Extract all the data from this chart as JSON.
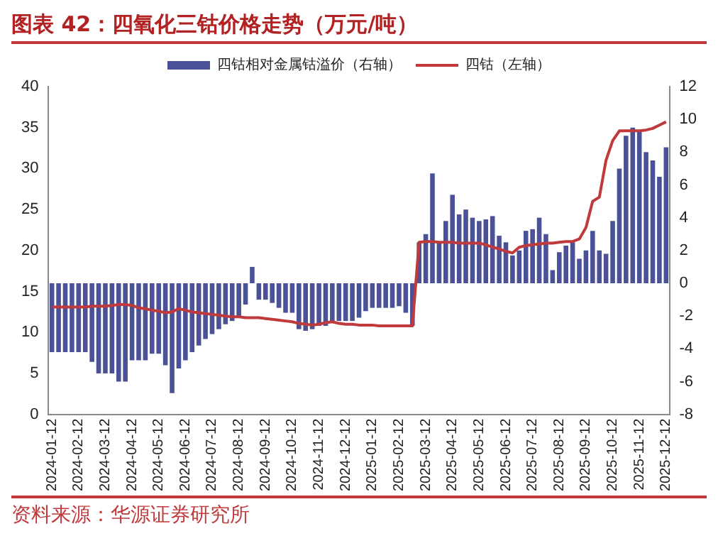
{
  "chart_data": {
    "type": "bar",
    "title": "图表 42：四氧化三钴价格走势（万元/吨）",
    "categories": [
      "2024-01-12",
      null,
      null,
      null,
      "2024-02-12",
      null,
      null,
      null,
      "2024-03-12",
      null,
      null,
      null,
      "2024-04-12",
      null,
      null,
      null,
      "2024-05-12",
      null,
      null,
      null,
      "2024-06-12",
      null,
      null,
      null,
      "2024-07-12",
      null,
      null,
      null,
      "2024-08-12",
      null,
      null,
      null,
      "2024-09-12",
      null,
      null,
      null,
      "2024-10-12",
      null,
      null,
      null,
      "2024-11-12",
      null,
      null,
      null,
      "2024-12-12",
      null,
      null,
      null,
      "2025-01-12",
      null,
      null,
      null,
      "2025-02-12",
      null,
      null,
      null,
      "2025-03-12",
      null,
      null,
      null,
      "2025-04-12",
      null,
      null,
      null,
      "2025-05-12",
      null,
      null,
      null,
      "2025-06-12",
      null,
      null,
      null,
      "2025-07-12",
      null,
      null,
      null,
      "2025-08-12",
      null,
      null,
      null,
      "2025-09-12",
      null,
      null,
      null,
      "2025-10-12",
      null,
      null,
      null,
      "2025-11-12",
      null,
      null,
      null,
      "2025-12-12"
    ],
    "series": [
      {
        "name": "四钴相对金属钴溢价（右轴）",
        "axis": "y2",
        "color": "#4b5196",
        "values": [
          -4.2,
          -4.2,
          -4.2,
          -4.2,
          -4.2,
          -4.2,
          -4.8,
          -5.5,
          -5.5,
          -5.5,
          -6.0,
          -6.0,
          -4.7,
          -4.7,
          -4.7,
          -4.3,
          -4.3,
          -5.0,
          -6.7,
          -5.2,
          -4.7,
          -4.2,
          -3.8,
          -3.4,
          -3.1,
          -2.8,
          -2.5,
          -2.3,
          -2.0,
          -1.3,
          1.0,
          -1.0,
          -1.0,
          -1.2,
          -1.5,
          -1.8,
          -1.8,
          -2.8,
          -2.9,
          -2.8,
          -2.6,
          -2.6,
          -2.3,
          -2.3,
          -2.3,
          -2.3,
          -2.1,
          -1.7,
          -1.5,
          -1.5,
          -1.5,
          -1.5,
          -1.4,
          -1.8,
          -2.6,
          2.5,
          3.0,
          6.7,
          2.5,
          3.8,
          5.4,
          4.2,
          4.5,
          4.0,
          3.8,
          3.9,
          4.1,
          2.9,
          2.5,
          1.7,
          2.0,
          3.2,
          3.3,
          4.0,
          3.0,
          0.8,
          1.9,
          2.3,
          2.5,
          1.5,
          2.0,
          3.2,
          2.0,
          1.8,
          3.8,
          7.0,
          9.0,
          9.5,
          9.3,
          8.0,
          7.5,
          6.5,
          8.3
        ]
      },
      {
        "name": "四钴（左轴）",
        "type": "line",
        "axis": "y",
        "color": "#c0393b",
        "values": [
          13.1,
          13.1,
          13.1,
          13.1,
          13.1,
          13.1,
          13.2,
          13.2,
          13.2,
          13.3,
          13.4,
          13.4,
          13.3,
          13.0,
          12.9,
          12.7,
          12.6,
          12.4,
          12.5,
          12.9,
          12.7,
          12.5,
          12.4,
          12.3,
          12.2,
          12.1,
          12.0,
          11.9,
          11.9,
          11.8,
          11.8,
          11.8,
          11.7,
          11.6,
          11.5,
          11.4,
          11.3,
          11.1,
          11.0,
          10.9,
          11.0,
          11.2,
          11.3,
          11.1,
          11.0,
          11.0,
          10.9,
          10.9,
          10.9,
          10.8,
          10.8,
          10.8,
          10.8,
          10.8,
          10.8,
          21.0,
          21.1,
          21.1,
          21.0,
          21.0,
          21.0,
          20.9,
          20.9,
          20.9,
          20.9,
          20.7,
          20.4,
          20.2,
          19.9,
          19.7,
          20.4,
          20.6,
          20.7,
          20.8,
          20.9,
          20.9,
          21.0,
          21.1,
          21.1,
          21.4,
          22.8,
          26.0,
          26.5,
          31.0,
          33.4,
          34.6,
          34.6,
          34.6,
          34.6,
          34.7,
          34.9,
          35.3,
          35.7
        ]
      }
    ],
    "ylim": [
      0,
      40
    ],
    "yticks": [
      0,
      5,
      10,
      15,
      20,
      25,
      30,
      35,
      40
    ],
    "y2lim": [
      -8,
      12
    ],
    "y2ticks": [
      -8,
      -6,
      -4,
      -2,
      0,
      2,
      4,
      6,
      8,
      10,
      12
    ],
    "legend": "top",
    "grid": false,
    "marker": "none",
    "annotations": [
      "资料来源：华源证券研究所"
    ]
  }
}
